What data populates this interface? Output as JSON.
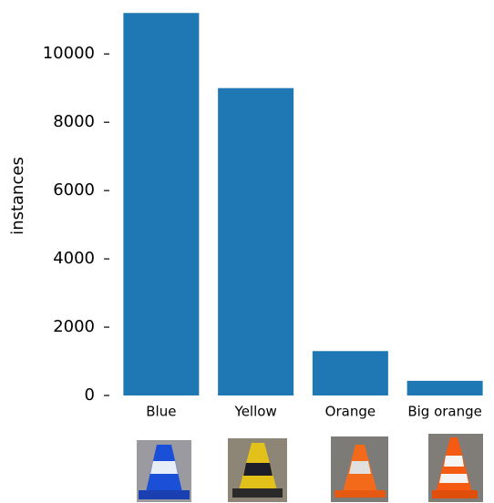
{
  "chart_data": {
    "type": "bar",
    "y_label": "instances",
    "categories": [
      "Blue",
      "Yellow",
      "Orange",
      "Big orange"
    ],
    "values": [
      11200,
      9000,
      1300,
      430
    ],
    "color": "#1f77b4",
    "ylim": [
      0,
      11500
    ],
    "yticks": [
      0,
      2000,
      4000,
      6000,
      8000,
      10000
    ],
    "grid": false
  }
}
